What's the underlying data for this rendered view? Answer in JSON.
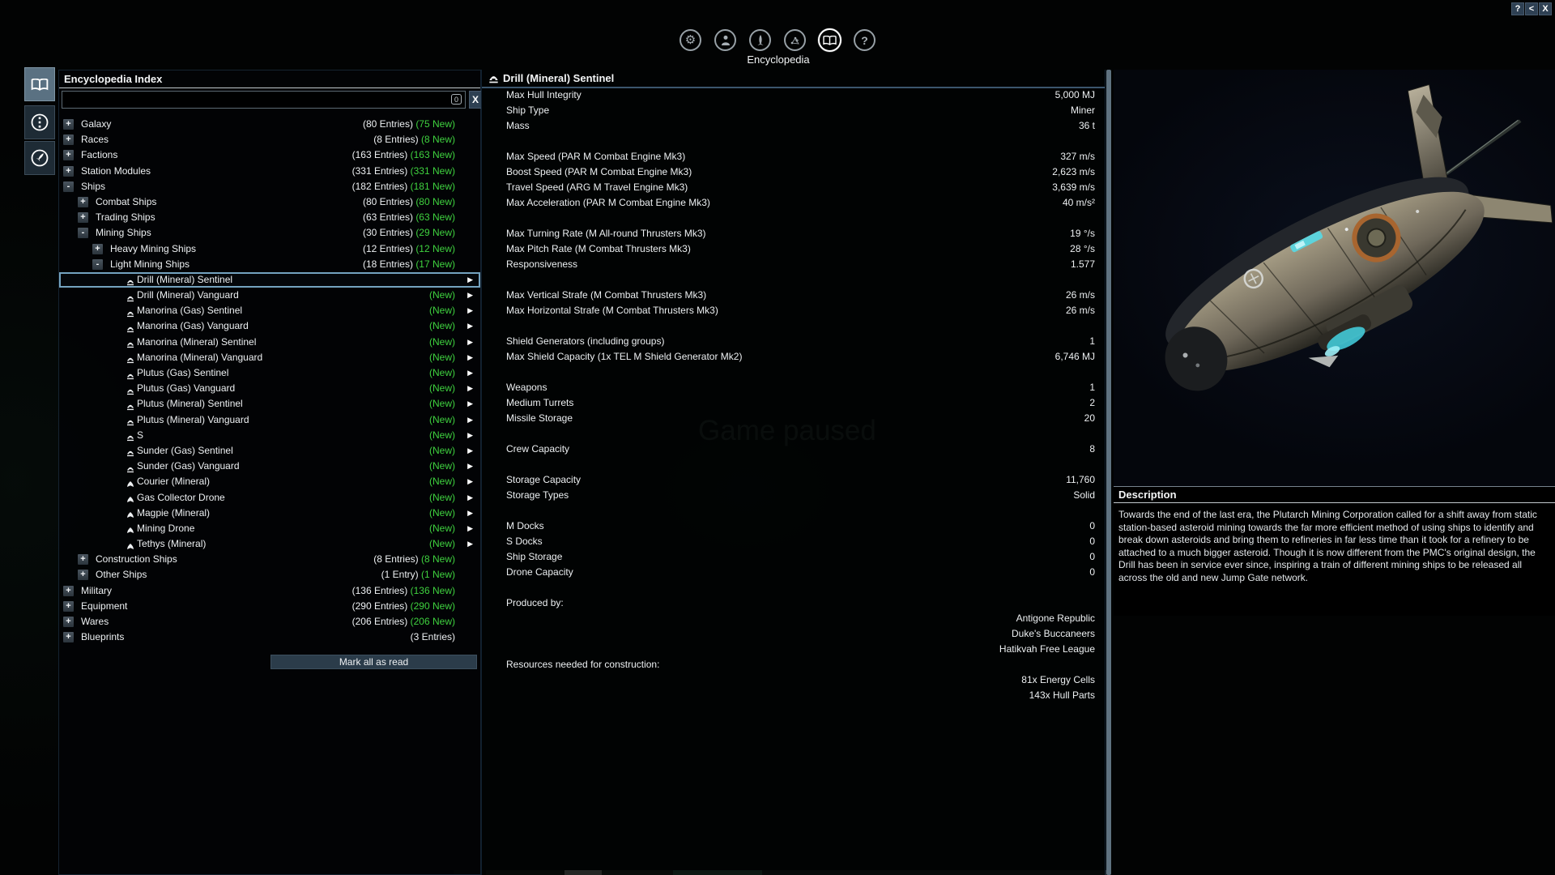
{
  "window": {
    "buttons": [
      "?",
      "<",
      "X"
    ]
  },
  "top_nav": {
    "label": "Encyclopedia",
    "icons": [
      "settings-gear",
      "player-profile",
      "ship",
      "map-constellation",
      "encyclopedia-book",
      "help-question"
    ],
    "selected_icon": "encyclopedia-book"
  },
  "side_tabs": [
    "encyclopedia-book",
    "scan-timeline",
    "ship-database"
  ],
  "status": {
    "paused_text": "Game paused"
  },
  "index_panel": {
    "title": "Encyclopedia Index",
    "search": {
      "value": "",
      "placeholder": "",
      "badge": "0",
      "clear_label": "X"
    },
    "mark_all_button": "Mark all as read",
    "tree": [
      {
        "kind": "cat",
        "level": 0,
        "exp": "+",
        "label": "Galaxy",
        "entries": "(80 Entries)",
        "new_badge": "(75 New)"
      },
      {
        "kind": "cat",
        "level": 0,
        "exp": "+",
        "label": "Races",
        "entries": "(8 Entries)",
        "new_badge": "(8 New)"
      },
      {
        "kind": "cat",
        "level": 0,
        "exp": "+",
        "label": "Factions",
        "entries": "(163 Entries)",
        "new_badge": "(163 New)"
      },
      {
        "kind": "cat",
        "level": 0,
        "exp": "+",
        "label": "Station Modules",
        "entries": "(331 Entries)",
        "new_badge": "(331 New)"
      },
      {
        "kind": "cat",
        "level": 0,
        "exp": "-",
        "label": "Ships",
        "entries": "(182 Entries)",
        "new_badge": "(181 New)"
      },
      {
        "kind": "cat",
        "level": 1,
        "exp": "+",
        "label": "Combat Ships",
        "entries": "(80 Entries)",
        "new_badge": "(80 New)"
      },
      {
        "kind": "cat",
        "level": 1,
        "exp": "+",
        "label": "Trading Ships",
        "entries": "(63 Entries)",
        "new_badge": "(63 New)"
      },
      {
        "kind": "cat",
        "level": 1,
        "exp": "-",
        "label": "Mining Ships",
        "entries": "(30 Entries)",
        "new_badge": "(29 New)"
      },
      {
        "kind": "cat",
        "level": 2,
        "exp": "+",
        "label": "Heavy Mining Ships",
        "entries": "(12 Entries)",
        "new_badge": "(12 New)"
      },
      {
        "kind": "cat",
        "level": 2,
        "exp": "-",
        "label": "Light Mining Ships",
        "entries": "(18 Entries)",
        "new_badge": "(17 New)"
      },
      {
        "kind": "leaf",
        "level": 3,
        "icon": "ship",
        "label": "Drill (Mineral) Sentinel",
        "new_badge": "",
        "selected": true
      },
      {
        "kind": "leaf",
        "level": 3,
        "icon": "ship",
        "label": "Drill (Mineral) Vanguard",
        "new_badge": "(New)"
      },
      {
        "kind": "leaf",
        "level": 3,
        "icon": "ship",
        "label": "Manorina (Gas) Sentinel",
        "new_badge": "(New)"
      },
      {
        "kind": "leaf",
        "level": 3,
        "icon": "ship",
        "label": "Manorina (Gas) Vanguard",
        "new_badge": "(New)"
      },
      {
        "kind": "leaf",
        "level": 3,
        "icon": "ship",
        "label": "Manorina (Mineral) Sentinel",
        "new_badge": "(New)"
      },
      {
        "kind": "leaf",
        "level": 3,
        "icon": "ship",
        "label": "Manorina (Mineral) Vanguard",
        "new_badge": "(New)"
      },
      {
        "kind": "leaf",
        "level": 3,
        "icon": "ship",
        "label": "Plutus (Gas) Sentinel",
        "new_badge": "(New)"
      },
      {
        "kind": "leaf",
        "level": 3,
        "icon": "ship",
        "label": "Plutus (Gas) Vanguard",
        "new_badge": "(New)"
      },
      {
        "kind": "leaf",
        "level": 3,
        "icon": "ship",
        "label": "Plutus (Mineral) Sentinel",
        "new_badge": "(New)"
      },
      {
        "kind": "leaf",
        "level": 3,
        "icon": "ship",
        "label": "Plutus (Mineral) Vanguard",
        "new_badge": "(New)"
      },
      {
        "kind": "leaf",
        "level": 3,
        "icon": "ship",
        "label": "S",
        "new_badge": "(New)"
      },
      {
        "kind": "leaf",
        "level": 3,
        "icon": "ship",
        "label": "Sunder (Gas) Sentinel",
        "new_badge": "(New)"
      },
      {
        "kind": "leaf",
        "level": 3,
        "icon": "ship",
        "label": "Sunder (Gas) Vanguard",
        "new_badge": "(New)"
      },
      {
        "kind": "leaf",
        "level": 3,
        "icon": "drone",
        "label": "Courier (Mineral)",
        "new_badge": "(New)"
      },
      {
        "kind": "leaf",
        "level": 3,
        "icon": "drone",
        "label": "Gas Collector Drone",
        "new_badge": "(New)"
      },
      {
        "kind": "leaf",
        "level": 3,
        "icon": "drone",
        "label": "Magpie (Mineral)",
        "new_badge": "(New)"
      },
      {
        "kind": "leaf",
        "level": 3,
        "icon": "drone",
        "label": "Mining Drone",
        "new_badge": "(New)"
      },
      {
        "kind": "leaf",
        "level": 3,
        "icon": "drone",
        "label": "Tethys (Mineral)",
        "new_badge": "(New)"
      },
      {
        "kind": "cat",
        "level": 1,
        "exp": "+",
        "label": "Construction Ships",
        "entries": "(8 Entries)",
        "new_badge": "(8 New)"
      },
      {
        "kind": "cat",
        "level": 1,
        "exp": "+",
        "label": "Other Ships",
        "entries": "(1 Entry)",
        "new_badge": "(1 New)"
      },
      {
        "kind": "cat",
        "level": 0,
        "exp": "+",
        "label": "Military",
        "entries": "(136 Entries)",
        "new_badge": "(136 New)"
      },
      {
        "kind": "cat",
        "level": 0,
        "exp": "+",
        "label": "Equipment",
        "entries": "(290 Entries)",
        "new_badge": "(290 New)"
      },
      {
        "kind": "cat",
        "level": 0,
        "exp": "+",
        "label": "Wares",
        "entries": "(206 Entries)",
        "new_badge": "(206 New)"
      },
      {
        "kind": "cat",
        "level": 0,
        "exp": "+",
        "label": "Blueprints",
        "entries": "(3 Entries)",
        "new_badge": ""
      }
    ]
  },
  "detail_panel": {
    "title": "Drill (Mineral) Sentinel",
    "stats": [
      {
        "l": "Max Hull Integrity",
        "v": "5,000 MJ"
      },
      {
        "l": "Ship Type",
        "v": "Miner"
      },
      {
        "l": "Mass",
        "v": "36 t"
      },
      {
        "s": 1
      },
      {
        "l": "Max Speed (PAR M Combat Engine Mk3)",
        "v": "327 m/s"
      },
      {
        "l": "Boost Speed (PAR M Combat Engine Mk3)",
        "v": "2,623 m/s"
      },
      {
        "l": "Travel Speed (ARG M Travel Engine Mk3)",
        "v": "3,639 m/s"
      },
      {
        "l": "Max Acceleration (PAR M Combat Engine Mk3)",
        "v": "40 m/s²"
      },
      {
        "s": 1
      },
      {
        "l": "Max Turning Rate (M All-round Thrusters Mk3)",
        "v": "19 °/s"
      },
      {
        "l": "Max Pitch Rate (M Combat Thrusters Mk3)",
        "v": "28 °/s"
      },
      {
        "l": "Responsiveness",
        "v": "1.577"
      },
      {
        "s": 1
      },
      {
        "l": "Max Vertical Strafe (M Combat Thrusters Mk3)",
        "v": "26 m/s"
      },
      {
        "l": "Max Horizontal Strafe (M Combat Thrusters Mk3)",
        "v": "26 m/s"
      },
      {
        "s": 1
      },
      {
        "l": "Shield Generators (including groups)",
        "v": "1"
      },
      {
        "l": "Max Shield Capacity (1x TEL M Shield Generator Mk2)",
        "v": "6,746 MJ"
      },
      {
        "s": 1
      },
      {
        "l": "Weapons",
        "v": "1"
      },
      {
        "l": "Medium Turrets",
        "v": "2"
      },
      {
        "l": "Missile Storage",
        "v": "20"
      },
      {
        "s": 1
      },
      {
        "l": "Crew Capacity",
        "v": "8"
      },
      {
        "s": 1
      },
      {
        "l": "Storage Capacity",
        "v": "11,760"
      },
      {
        "l": "Storage Types",
        "v": "Solid"
      },
      {
        "s": 1
      },
      {
        "l": "M Docks",
        "v": "0"
      },
      {
        "l": "S Docks",
        "v": "0"
      },
      {
        "l": "Ship Storage",
        "v": "0"
      },
      {
        "l": "Drone Capacity",
        "v": "0"
      },
      {
        "s": 1
      }
    ],
    "produced_by_label": "Produced by:",
    "produced_by": [
      "Antigone Republic",
      "Duke's Buccaneers",
      "Hatikvah Free League"
    ],
    "resources_label": "Resources needed for construction:",
    "resources": [
      "81x Energy Cells",
      "143x Hull Parts"
    ]
  },
  "description_panel": {
    "title": "Description",
    "text": "Towards the end of the last era, the Plutarch Mining Corporation called for a shift away from static station-based asteroid mining towards the far more efficient method of using ships to identify and break down asteroids and bring them to refineries in far less time than it took for a refinery to be attached to a much bigger asteroid. Though it is now different from the PMC's original design, the Drill has been in service ever since, inspiring a train of different mining ships to be released all across the old and new Jump Gate network."
  },
  "colors": {
    "new_green": "#3fd23f",
    "select_blue": "#74a3c0",
    "accent_slate": "#2e4053"
  }
}
